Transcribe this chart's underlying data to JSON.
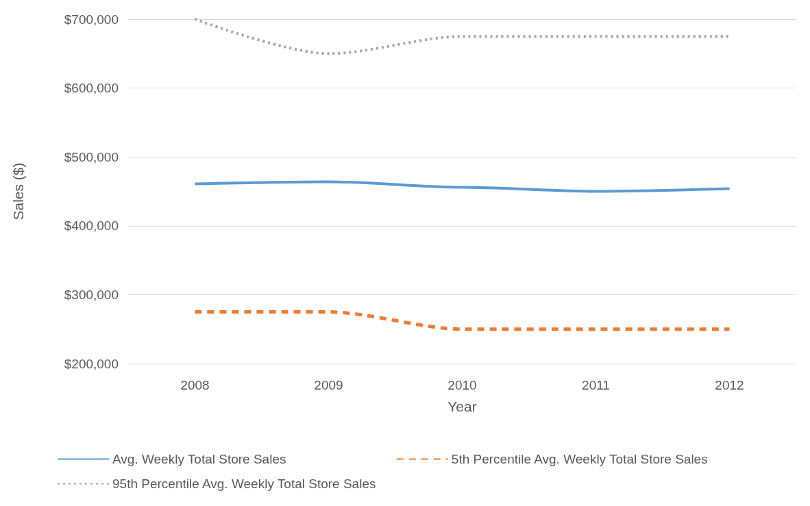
{
  "chart_data": {
    "type": "line",
    "xlabel": "Year",
    "ylabel": "Sales ($)",
    "categories": [
      "2008",
      "2009",
      "2010",
      "2011",
      "2012"
    ],
    "series": [
      {
        "name": "Avg. Weekly Total Store Sales",
        "color": "#5b9bd5",
        "line_style": "solid",
        "values": [
          461000,
          464000,
          456000,
          450000,
          454000
        ]
      },
      {
        "name": "5th Percentile Avg. Weekly Total Store Sales",
        "color": "#ed7d31",
        "line_style": "dashed",
        "values": [
          275000,
          275000,
          250000,
          250000,
          250000
        ]
      },
      {
        "name": "95th Percentile Avg. Weekly Total Store Sales",
        "color": "#a5a5a5",
        "line_style": "dotted",
        "values": [
          700000,
          650000,
          675000,
          675000,
          675000
        ]
      }
    ],
    "ylim": [
      200000,
      700000
    ],
    "yticks": [
      {
        "value": 200000,
        "label": "$200,000"
      },
      {
        "value": 300000,
        "label": "$300,000"
      },
      {
        "value": 400000,
        "label": "$400,000"
      },
      {
        "value": 500000,
        "label": "$500,000"
      },
      {
        "value": 600000,
        "label": "$600,000"
      },
      {
        "value": 700000,
        "label": "$700,000"
      }
    ],
    "grid": "y",
    "legend": "bottom",
    "marker": "none"
  }
}
